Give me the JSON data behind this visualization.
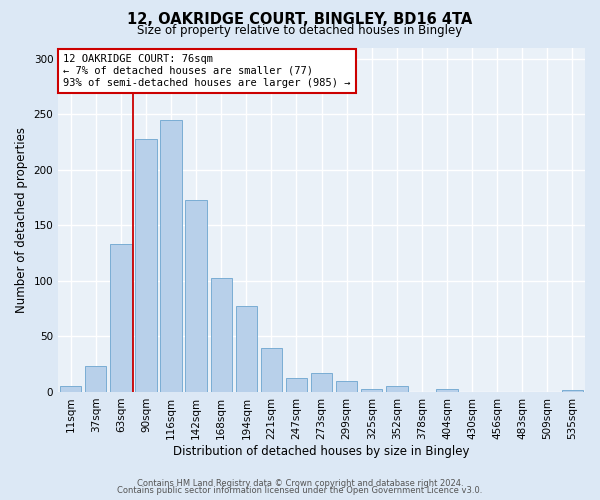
{
  "title1": "12, OAKRIDGE COURT, BINGLEY, BD16 4TA",
  "title2": "Size of property relative to detached houses in Bingley",
  "xlabel": "Distribution of detached houses by size in Bingley",
  "ylabel": "Number of detached properties",
  "bar_labels": [
    "11sqm",
    "37sqm",
    "63sqm",
    "90sqm",
    "116sqm",
    "142sqm",
    "168sqm",
    "194sqm",
    "221sqm",
    "247sqm",
    "273sqm",
    "299sqm",
    "325sqm",
    "352sqm",
    "378sqm",
    "404sqm",
    "430sqm",
    "456sqm",
    "483sqm",
    "509sqm",
    "535sqm"
  ],
  "bar_values": [
    5,
    23,
    133,
    228,
    245,
    173,
    103,
    77,
    40,
    13,
    17,
    10,
    3,
    5,
    0,
    3,
    0,
    0,
    0,
    0,
    2
  ],
  "bar_color": "#b8d0ea",
  "bar_edge_color": "#7aadd4",
  "vline_color": "#cc0000",
  "vline_x": 2.5,
  "ylim": [
    0,
    310
  ],
  "yticks": [
    0,
    50,
    100,
    150,
    200,
    250,
    300
  ],
  "annotation_title": "12 OAKRIDGE COURT: 76sqm",
  "annotation_line1": "← 7% of detached houses are smaller (77)",
  "annotation_line2": "93% of semi-detached houses are larger (985) →",
  "annotation_box_facecolor": "#ffffff",
  "annotation_box_edgecolor": "#cc0000",
  "footer1": "Contains HM Land Registry data © Crown copyright and database right 2024.",
  "footer2": "Contains public sector information licensed under the Open Government Licence v3.0.",
  "bg_color": "#dce8f5",
  "plot_bg_color": "#eaf1f8",
  "grid_color": "#ffffff",
  "title1_fontsize": 10.5,
  "title2_fontsize": 8.5,
  "xlabel_fontsize": 8.5,
  "ylabel_fontsize": 8.5,
  "tick_fontsize": 7.5,
  "footer_fontsize": 6.0,
  "annot_fontsize": 7.5
}
